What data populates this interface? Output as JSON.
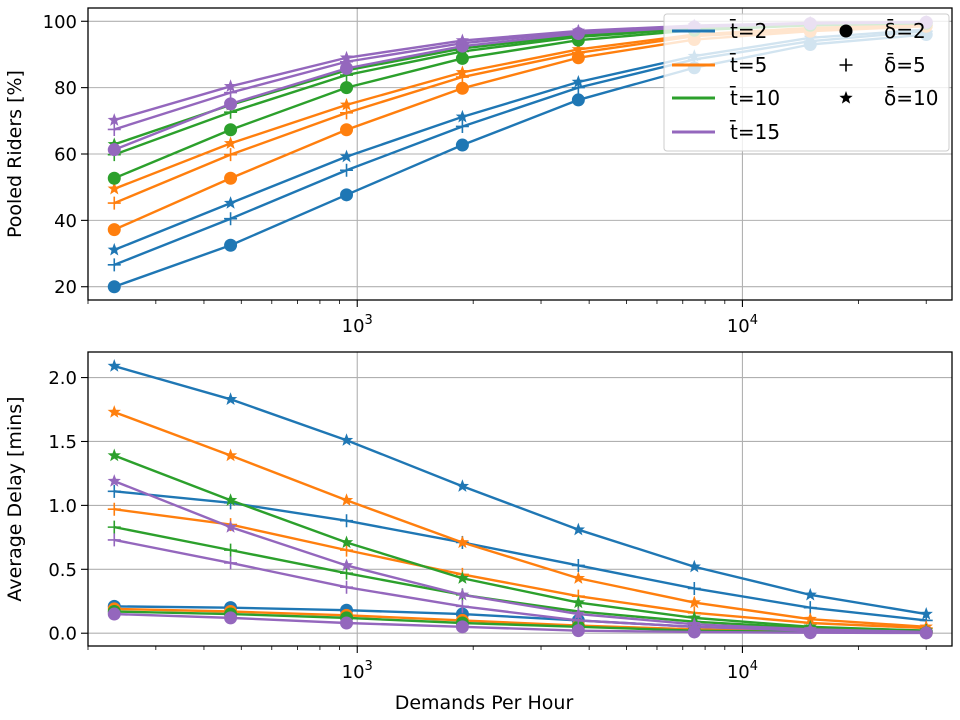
{
  "colors": {
    "t2": "#1f77b4",
    "t5": "#ff7f0e",
    "t10": "#2ca02c",
    "t15": "#9467bd",
    "grid": "#b0b0b0"
  },
  "legend": {
    "placement": "top-right",
    "t_entries": [
      {
        "label": "t̄=2",
        "color": "#1f77b4"
      },
      {
        "label": "t̄=5",
        "color": "#ff7f0e"
      },
      {
        "label": "t̄=10",
        "color": "#2ca02c"
      },
      {
        "label": "t̄=15",
        "color": "#9467bd"
      }
    ],
    "delta_entries": [
      {
        "label": "δ̄=2",
        "marker": "circle"
      },
      {
        "label": "δ̄=5",
        "marker": "plus"
      },
      {
        "label": "δ̄=10",
        "marker": "star"
      }
    ]
  },
  "chart_data": [
    {
      "type": "line",
      "xscale": "log",
      "xlim": [
        200,
        35000
      ],
      "ylim": [
        16,
        104
      ],
      "ylabel": "Pooled Riders [%]",
      "xlabel": "",
      "x_tick_labels": [
        "10^3",
        "10^4"
      ],
      "y_ticks": [
        20,
        40,
        60,
        80,
        100
      ],
      "grid": true,
      "x": [
        234,
        469,
        938,
        1875,
        3750,
        7500,
        15000,
        30000
      ],
      "series": [
        {
          "color": "#1f77b4",
          "marker": "circle",
          "values": [
            20,
            32.5,
            47.7,
            62.7,
            76.3,
            86,
            93,
            96
          ]
        },
        {
          "color": "#1f77b4",
          "marker": "plus",
          "values": [
            26.6,
            40.5,
            55.1,
            68.3,
            80,
            88.5,
            94,
            97
          ]
        },
        {
          "color": "#1f77b4",
          "marker": "star",
          "values": [
            31.1,
            45.2,
            59.2,
            71.2,
            81.7,
            89.5,
            95,
            97.5
          ]
        },
        {
          "color": "#ff7f0e",
          "marker": "circle",
          "values": [
            37.2,
            52.7,
            67.3,
            79.8,
            89,
            94.5,
            97,
            98.5
          ]
        },
        {
          "color": "#ff7f0e",
          "marker": "plus",
          "values": [
            45.2,
            59.8,
            72.4,
            83.2,
            90.5,
            95.5,
            97.5,
            98.8
          ]
        },
        {
          "color": "#ff7f0e",
          "marker": "star",
          "values": [
            49.5,
            63.2,
            74.8,
            84.6,
            91.5,
            96,
            98,
            99
          ]
        },
        {
          "color": "#2ca02c",
          "marker": "circle",
          "values": [
            52.7,
            67.3,
            80,
            88.8,
            94.3,
            97.3,
            98.8,
            99.4
          ]
        },
        {
          "color": "#2ca02c",
          "marker": "plus",
          "values": [
            59.8,
            72.6,
            83.8,
            90.9,
            95.3,
            97.8,
            99,
            99.5
          ]
        },
        {
          "color": "#2ca02c",
          "marker": "star",
          "values": [
            62.9,
            74.8,
            85.2,
            91.8,
            95.8,
            98,
            99.1,
            99.6
          ]
        },
        {
          "color": "#9467bd",
          "marker": "circle",
          "values": [
            61.3,
            75.1,
            85.8,
            92.5,
            96.3,
            98.3,
            99.3,
            99.7
          ]
        },
        {
          "color": "#9467bd",
          "marker": "plus",
          "values": [
            67.4,
            78.5,
            87.8,
            93.4,
            96.8,
            98.5,
            99.4,
            99.7
          ]
        },
        {
          "color": "#9467bd",
          "marker": "star",
          "values": [
            70.2,
            80.4,
            89,
            94.2,
            97.1,
            98.7,
            99.5,
            99.8
          ]
        }
      ]
    },
    {
      "type": "line",
      "xscale": "log",
      "xlim": [
        200,
        35000
      ],
      "ylim": [
        -0.1,
        2.2
      ],
      "ylabel": "Average Delay [mins]",
      "xlabel": "Demands Per Hour",
      "x_tick_labels": [
        "10^3",
        "10^4"
      ],
      "y_ticks": [
        "0.0",
        "0.5",
        "1.0",
        "1.5",
        "2.0"
      ],
      "grid": true,
      "x": [
        234,
        469,
        938,
        1875,
        3750,
        7500,
        15000,
        30000
      ],
      "series": [
        {
          "color": "#1f77b4",
          "marker": "circle",
          "values": [
            0.21,
            0.2,
            0.18,
            0.15,
            0.1,
            0.05,
            0.02,
            0.01
          ]
        },
        {
          "color": "#1f77b4",
          "marker": "plus",
          "values": [
            1.11,
            1.02,
            0.88,
            0.71,
            0.53,
            0.35,
            0.2,
            0.1
          ]
        },
        {
          "color": "#1f77b4",
          "marker": "star",
          "values": [
            2.09,
            1.83,
            1.51,
            1.15,
            0.81,
            0.52,
            0.3,
            0.15
          ]
        },
        {
          "color": "#ff7f0e",
          "marker": "circle",
          "values": [
            0.19,
            0.17,
            0.14,
            0.1,
            0.06,
            0.03,
            0.01,
            0.005
          ]
        },
        {
          "color": "#ff7f0e",
          "marker": "plus",
          "values": [
            0.97,
            0.85,
            0.65,
            0.46,
            0.29,
            0.16,
            0.08,
            0.04
          ]
        },
        {
          "color": "#ff7f0e",
          "marker": "star",
          "values": [
            1.73,
            1.39,
            1.04,
            0.71,
            0.43,
            0.24,
            0.11,
            0.05
          ]
        },
        {
          "color": "#2ca02c",
          "marker": "circle",
          "values": [
            0.17,
            0.15,
            0.12,
            0.08,
            0.05,
            0.02,
            0.01,
            0.004
          ]
        },
        {
          "color": "#2ca02c",
          "marker": "plus",
          "values": [
            0.83,
            0.65,
            0.47,
            0.3,
            0.17,
            0.09,
            0.04,
            0.02
          ]
        },
        {
          "color": "#2ca02c",
          "marker": "star",
          "values": [
            1.39,
            1.04,
            0.71,
            0.43,
            0.24,
            0.12,
            0.05,
            0.02
          ]
        },
        {
          "color": "#9467bd",
          "marker": "circle",
          "values": [
            0.15,
            0.12,
            0.08,
            0.05,
            0.02,
            0.01,
            0.004,
            0.002
          ]
        },
        {
          "color": "#9467bd",
          "marker": "plus",
          "values": [
            0.73,
            0.55,
            0.36,
            0.21,
            0.1,
            0.05,
            0.02,
            0.01
          ]
        },
        {
          "color": "#9467bd",
          "marker": "star",
          "values": [
            1.19,
            0.83,
            0.53,
            0.3,
            0.15,
            0.07,
            0.03,
            0.01
          ]
        }
      ]
    }
  ]
}
